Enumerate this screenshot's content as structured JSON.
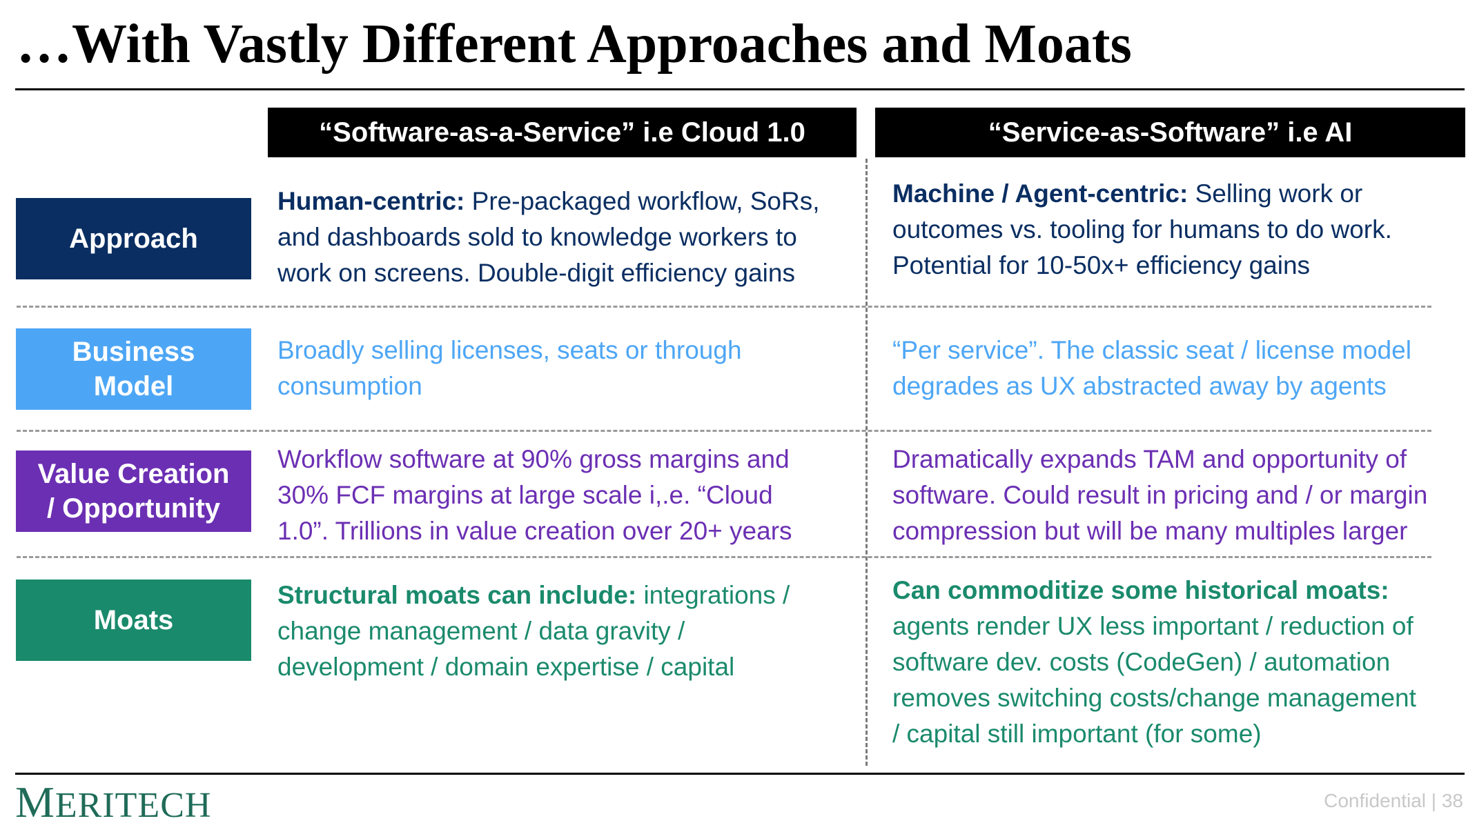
{
  "title": "…With Vastly Different Approaches and Moats",
  "columns": {
    "left": "“Software-as-a-Service” i.e Cloud 1.0",
    "right": "“Service-as-Software” i.e AI"
  },
  "rows": [
    {
      "label_lines": [
        "Approach"
      ],
      "color": "#0a2e62",
      "left": {
        "bold": "Human-centric:",
        "lines": [
          " Pre-packaged workflow, SoRs,",
          "and dashboards sold to knowledge workers to",
          "work on screens. Double-digit efficiency gains"
        ]
      },
      "right": {
        "bold": "Machine / Agent-centric:",
        "lines": [
          " Selling work or",
          "outcomes vs. tooling for humans to do work.",
          "Potential for 10-50x+ efficiency gains"
        ]
      }
    },
    {
      "label_lines": [
        "Business",
        "Model"
      ],
      "color": "#4da6f5",
      "left": {
        "bold": "",
        "lines": [
          "Broadly selling licenses, seats or through",
          "consumption"
        ]
      },
      "right": {
        "bold": "",
        "lines": [
          "“Per service”. The classic seat / license model",
          "degrades as UX abstracted away by agents"
        ]
      }
    },
    {
      "label_lines": [
        "Value Creation",
        "/ Opportunity"
      ],
      "color": "#6b2fb3",
      "left": {
        "bold": "",
        "lines": [
          "Workflow software at 90% gross margins and",
          "30% FCF margins at large scale i,.e. “Cloud",
          "1.0”. Trillions in value creation over 20+ years"
        ]
      },
      "right": {
        "bold": "",
        "lines": [
          "Dramatically expands TAM and opportunity of",
          "software. Could result in pricing and / or margin",
          "compression but will be many multiples larger"
        ]
      }
    },
    {
      "label_lines": [
        "Moats"
      ],
      "color": "#1a8a6c",
      "left": {
        "bold": "Structural moats can include:",
        "lines": [
          " integrations /",
          "change management / data gravity /",
          "development / domain expertise / capital"
        ]
      },
      "right": {
        "bold": "Can commoditize some historical moats:",
        "lines": [
          "",
          "agents render UX less important / reduction of",
          "software dev. costs (CodeGen) / automation",
          "removes switching costs/change management",
          "/ capital still important (for some)"
        ]
      }
    }
  ],
  "logo": {
    "initial": "M",
    "rest": "ERITECH"
  },
  "footer": "Confidential | 38",
  "colors": {
    "approach": "#0a2e62",
    "business_model": "#4da6f5",
    "value_creation": "#6b2fb3",
    "moats": "#1a8a6c",
    "logo": "#1f6b58"
  }
}
